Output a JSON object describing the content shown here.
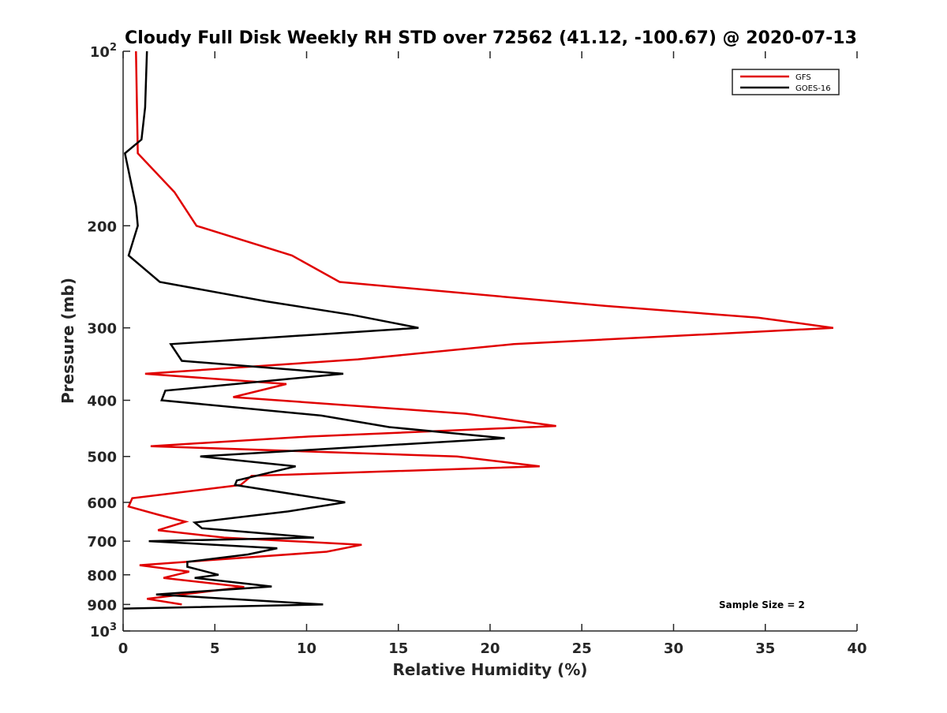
{
  "chart_data": {
    "type": "line",
    "title": "Cloudy Full Disk Weekly RH STD over 72562 (41.12, -100.67) @ 2020-07-13",
    "xlabel": "Relative Humidity (%)",
    "ylabel": "Pressure (mb)",
    "xlim": [
      0,
      40
    ],
    "ylim": [
      100,
      1000
    ],
    "y_scale": "log",
    "y_reversed": false,
    "grid": false,
    "legend_position": "top-right",
    "x_ticks": [
      "0",
      "5",
      "10",
      "15",
      "20",
      "25",
      "30",
      "35",
      "40"
    ],
    "x_tick_values": [
      0,
      5,
      10,
      15,
      20,
      25,
      30,
      35,
      40
    ],
    "y_ticks": [
      {
        "value": 100,
        "base": "10",
        "exp": "2"
      },
      {
        "value": 200,
        "label": "200"
      },
      {
        "value": 300,
        "label": "300"
      },
      {
        "value": 400,
        "label": "400"
      },
      {
        "value": 500,
        "label": "500"
      },
      {
        "value": 600,
        "label": "600"
      },
      {
        "value": 700,
        "label": "700"
      },
      {
        "value": 800,
        "label": "800"
      },
      {
        "value": 900,
        "label": "900"
      },
      {
        "value": 1000,
        "base": "10",
        "exp": "3"
      }
    ],
    "annotation": "Sample Size = 2",
    "series": [
      {
        "name": "GFS",
        "color": "#e00000",
        "points": [
          [
            0.7,
            100
          ],
          [
            0.8,
            150
          ],
          [
            2.8,
            175
          ],
          [
            4.0,
            200
          ],
          [
            9.2,
            225
          ],
          [
            11.8,
            250
          ],
          [
            26.3,
            275
          ],
          [
            34.6,
            288
          ],
          [
            38.7,
            300
          ],
          [
            21.3,
            320
          ],
          [
            12.8,
            340
          ],
          [
            1.2,
            360
          ],
          [
            8.9,
            375
          ],
          [
            6.0,
            395
          ],
          [
            18.7,
            422
          ],
          [
            23.6,
            443
          ],
          [
            10.1,
            462
          ],
          [
            1.5,
            480
          ],
          [
            18.2,
            500
          ],
          [
            22.7,
            520
          ],
          [
            7.0,
            540
          ],
          [
            6.4,
            560
          ],
          [
            0.5,
            590
          ],
          [
            0.3,
            610
          ],
          [
            1.9,
            630
          ],
          [
            3.4,
            648
          ],
          [
            1.9,
            670
          ],
          [
            5.5,
            690
          ],
          [
            13.0,
            710
          ],
          [
            11.1,
            730
          ],
          [
            0.9,
            770
          ],
          [
            3.6,
            790
          ],
          [
            2.2,
            810
          ],
          [
            6.6,
            840
          ],
          [
            1.3,
            880
          ],
          [
            3.2,
            900
          ]
        ]
      },
      {
        "name": "GOES-16",
        "color": "#000000",
        "points": [
          [
            1.3,
            100
          ],
          [
            1.2,
            125
          ],
          [
            1.0,
            142
          ],
          [
            0.1,
            150
          ],
          [
            0.7,
            185
          ],
          [
            0.8,
            200
          ],
          [
            0.3,
            225
          ],
          [
            2.0,
            250
          ],
          [
            7.8,
            270
          ],
          [
            12.5,
            285
          ],
          [
            16.1,
            300
          ],
          [
            2.6,
            320
          ],
          [
            3.2,
            342
          ],
          [
            12.0,
            360
          ],
          [
            2.3,
            385
          ],
          [
            2.1,
            400
          ],
          [
            10.8,
            425
          ],
          [
            14.5,
            445
          ],
          [
            20.8,
            465
          ],
          [
            4.2,
            500
          ],
          [
            9.4,
            520
          ],
          [
            6.2,
            550
          ],
          [
            6.1,
            560
          ],
          [
            12.1,
            600
          ],
          [
            9.0,
            622
          ],
          [
            3.9,
            650
          ],
          [
            4.3,
            665
          ],
          [
            10.4,
            690
          ],
          [
            1.4,
            700
          ],
          [
            8.4,
            720
          ],
          [
            6.8,
            738
          ],
          [
            3.5,
            760
          ],
          [
            3.5,
            775
          ],
          [
            5.2,
            800
          ],
          [
            3.9,
            810
          ],
          [
            8.1,
            838
          ],
          [
            1.8,
            865
          ],
          [
            10.9,
            900
          ],
          [
            0.0,
            915
          ]
        ]
      }
    ]
  }
}
